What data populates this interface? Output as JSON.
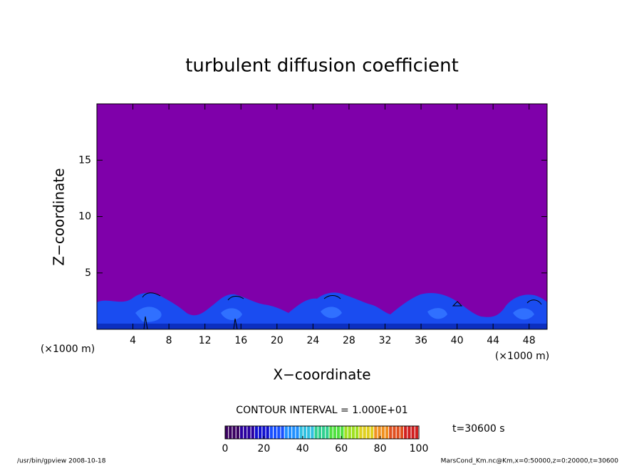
{
  "chart_data": {
    "type": "contour",
    "title": "turbulent diffusion coefficient",
    "x_label": "X−coordinate",
    "y_label": "Z−coordinate",
    "x_unit_label": "(×1000 m)",
    "y_unit_label": "(×1000 m)",
    "xlim": [
      0,
      50
    ],
    "xticks": [
      4,
      8,
      12,
      16,
      20,
      24,
      28,
      32,
      36,
      40,
      44,
      48
    ],
    "ylim": [
      0,
      20
    ],
    "yticks": [
      5,
      10,
      15
    ],
    "background_color": "#7f00aa",
    "contour_interval_label": "CONTOUR INTERVAL = 1.000E+01",
    "time_label": "t=30600 s",
    "colorbar": {
      "lim": [
        0,
        100
      ],
      "ticks": [
        0,
        20,
        40,
        60,
        80,
        100
      ],
      "colors": [
        "#3a0060",
        "#2a00a0",
        "#1010d0",
        "#1850ff",
        "#2090ff",
        "#30c0e0",
        "#30d090",
        "#50e040",
        "#a0e020",
        "#e0d020",
        "#f09020",
        "#e05020",
        "#d02020"
      ]
    },
    "footer_left": "/usr/bin/gpview   2008-10-18",
    "footer_right": "MarsCond_Km.nc@Km,x=0:50000,z=0:20000,t=30600"
  }
}
